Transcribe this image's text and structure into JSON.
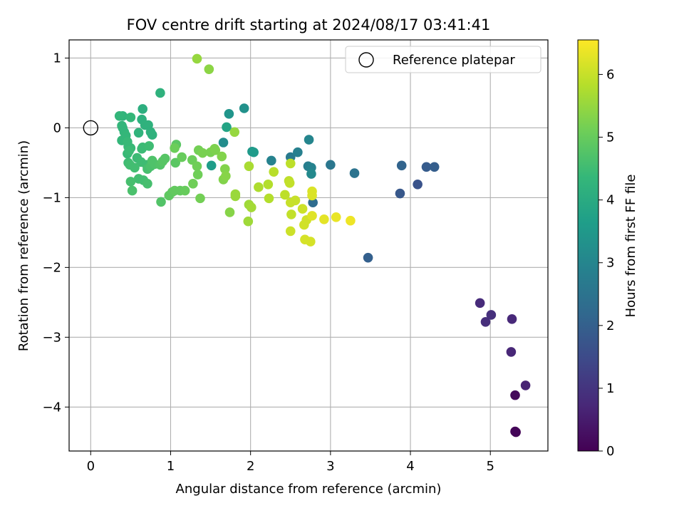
{
  "chart_data": {
    "type": "scatter",
    "title": "FOV centre drift starting at 2024/08/17 03:41:41",
    "xlabel": "Angular distance from reference (arcmin)",
    "ylabel": "Rotation from reference (arcmin)",
    "xlim": [
      -0.27,
      5.72
    ],
    "ylim": [
      -4.63,
      1.26
    ],
    "x_ticks": [
      "0",
      "1",
      "2",
      "3",
      "4",
      "5"
    ],
    "y_ticks": [
      "1",
      "0",
      "−1",
      "−2",
      "−3",
      "−4"
    ],
    "x_tick_values": [
      0,
      1,
      2,
      3,
      4,
      5
    ],
    "y_tick_values": [
      1,
      0,
      -1,
      -2,
      -3,
      -4
    ],
    "grid": true,
    "legend": {
      "position": "top-right",
      "entries": [
        "Reference platepar"
      ]
    },
    "reference_point": {
      "x": 0,
      "y": 0
    },
    "colorbar": {
      "label": "Hours from first FF file",
      "range": [
        0,
        6.55
      ],
      "ticks": [
        "0",
        "1",
        "2",
        "3",
        "4",
        "5",
        "6"
      ],
      "tick_values": [
        0,
        1,
        2,
        3,
        4,
        5,
        6
      ],
      "colormap": "viridis"
    },
    "points": [
      [
        5.32,
        -4.36,
        0.05
      ],
      [
        5.31,
        -4.35,
        0.08
      ],
      [
        5.31,
        -3.83,
        0.15
      ],
      [
        5.44,
        -3.69,
        0.65
      ],
      [
        5.26,
        -3.21,
        0.7
      ],
      [
        5.27,
        -2.74,
        0.75
      ],
      [
        4.87,
        -2.51,
        0.8
      ],
      [
        4.94,
        -2.78,
        0.85
      ],
      [
        5.01,
        -2.68,
        0.9
      ],
      [
        4.09,
        -0.81,
        1.7
      ],
      [
        3.87,
        -0.94,
        1.8
      ],
      [
        4.2,
        -0.56,
        1.9
      ],
      [
        4.3,
        -0.56,
        1.95
      ],
      [
        3.47,
        -1.86,
        2.0
      ],
      [
        3.89,
        -0.54,
        2.1
      ],
      [
        2.78,
        -1.07,
        2.3
      ],
      [
        3.3,
        -0.65,
        2.5
      ],
      [
        3.0,
        -0.53,
        2.6
      ],
      [
        2.72,
        -0.55,
        2.8
      ],
      [
        2.76,
        -0.57,
        2.9
      ],
      [
        2.5,
        -0.42,
        2.7
      ],
      [
        2.59,
        -0.35,
        2.85
      ],
      [
        2.26,
        -0.47,
        2.9
      ],
      [
        2.73,
        -0.17,
        3.0
      ],
      [
        2.76,
        -0.66,
        3.1
      ],
      [
        1.66,
        -0.21,
        3.2
      ],
      [
        1.92,
        0.28,
        3.3
      ],
      [
        1.73,
        0.2,
        3.4
      ],
      [
        2.02,
        -0.34,
        3.5
      ],
      [
        2.04,
        -0.35,
        3.55
      ],
      [
        1.51,
        -0.54,
        3.6
      ],
      [
        1.7,
        0.01,
        3.8
      ],
      [
        0.65,
        0.27,
        4.1
      ],
      [
        0.64,
        0.12,
        4.15
      ],
      [
        0.68,
        0.04,
        4.2
      ],
      [
        0.72,
        0.04,
        4.2
      ],
      [
        0.75,
        -0.06,
        4.2
      ],
      [
        0.77,
        -0.1,
        4.2
      ],
      [
        0.87,
        0.5,
        4.2
      ],
      [
        0.6,
        -0.07,
        4.25
      ],
      [
        0.4,
        0.17,
        4.25
      ],
      [
        0.36,
        0.17,
        4.3
      ],
      [
        0.39,
        0.03,
        4.3
      ],
      [
        0.4,
        0.0,
        4.3
      ],
      [
        0.42,
        -0.06,
        4.3
      ],
      [
        0.44,
        -0.11,
        4.35
      ],
      [
        0.5,
        0.15,
        4.35
      ],
      [
        0.39,
        -0.18,
        4.35
      ],
      [
        0.46,
        -0.2,
        4.4
      ],
      [
        0.47,
        -0.27,
        4.4
      ],
      [
        0.5,
        -0.29,
        4.4
      ],
      [
        0.46,
        -0.37,
        4.4
      ],
      [
        0.48,
        -0.33,
        4.45
      ],
      [
        0.58,
        -0.43,
        4.45
      ],
      [
        0.65,
        -0.28,
        4.45
      ],
      [
        0.64,
        -0.3,
        4.45
      ],
      [
        0.73,
        -0.26,
        4.5
      ],
      [
        0.63,
        -0.49,
        4.5
      ],
      [
        0.7,
        -0.53,
        4.5
      ],
      [
        0.47,
        -0.5,
        4.5
      ],
      [
        0.49,
        -0.53,
        4.55
      ],
      [
        0.55,
        -0.57,
        4.55
      ],
      [
        0.6,
        -0.73,
        4.55
      ],
      [
        0.66,
        -0.75,
        4.55
      ],
      [
        0.71,
        -0.59,
        4.6
      ],
      [
        0.71,
        -0.8,
        4.6
      ],
      [
        0.5,
        -0.77,
        4.6
      ],
      [
        0.52,
        -0.9,
        4.65
      ],
      [
        0.75,
        -0.55,
        4.65
      ],
      [
        0.77,
        -0.47,
        4.7
      ],
      [
        0.8,
        -0.52,
        4.7
      ],
      [
        0.87,
        -0.53,
        4.75
      ],
      [
        0.88,
        -1.06,
        4.75
      ],
      [
        0.9,
        -0.48,
        4.8
      ],
      [
        0.93,
        -0.44,
        4.8
      ],
      [
        1.07,
        -0.24,
        4.85
      ],
      [
        1.06,
        -0.5,
        4.85
      ],
      [
        0.98,
        -0.97,
        4.9
      ],
      [
        1.02,
        -0.92,
        4.9
      ],
      [
        1.05,
        -0.9,
        4.95
      ],
      [
        1.12,
        -0.9,
        4.95
      ],
      [
        1.18,
        -0.9,
        5.0
      ],
      [
        1.14,
        -0.42,
        5.0
      ],
      [
        1.05,
        -0.29,
        5.05
      ],
      [
        1.27,
        -0.46,
        5.05
      ],
      [
        1.28,
        -0.8,
        5.1
      ],
      [
        1.33,
        -0.55,
        5.1
      ],
      [
        1.34,
        -0.67,
        5.1
      ],
      [
        1.37,
        -1.01,
        5.15
      ],
      [
        1.35,
        -0.32,
        5.15
      ],
      [
        1.4,
        -0.36,
        5.2
      ],
      [
        1.5,
        -0.35,
        5.2
      ],
      [
        1.55,
        -0.3,
        5.25
      ],
      [
        1.56,
        -0.32,
        5.25
      ],
      [
        1.64,
        -0.41,
        5.3
      ],
      [
        1.68,
        -0.59,
        5.3
      ],
      [
        1.66,
        -0.74,
        5.3
      ],
      [
        1.69,
        -0.69,
        5.35
      ],
      [
        1.74,
        -1.21,
        5.35
      ],
      [
        1.48,
        0.84,
        5.4
      ],
      [
        1.33,
        0.99,
        5.5
      ],
      [
        1.8,
        -0.06,
        5.5
      ],
      [
        1.81,
        -0.95,
        5.55
      ],
      [
        1.81,
        -0.98,
        5.55
      ],
      [
        1.97,
        -1.34,
        5.6
      ],
      [
        1.98,
        -1.1,
        5.6
      ],
      [
        2.01,
        -1.14,
        5.65
      ],
      [
        1.98,
        -0.55,
        5.7
      ],
      [
        2.1,
        -0.85,
        5.75
      ],
      [
        2.22,
        -0.81,
        5.8
      ],
      [
        2.23,
        -1.01,
        5.8
      ],
      [
        2.29,
        -0.63,
        5.85
      ],
      [
        2.43,
        -0.96,
        5.9
      ],
      [
        2.5,
        -0.51,
        5.9
      ],
      [
        2.48,
        -0.76,
        5.9
      ],
      [
        2.49,
        -0.79,
        5.95
      ],
      [
        2.51,
        -1.24,
        5.95
      ],
      [
        2.5,
        -1.07,
        6.0
      ],
      [
        2.56,
        -1.04,
        6.0
      ],
      [
        2.5,
        -1.48,
        6.05
      ],
      [
        2.65,
        -1.16,
        6.05
      ],
      [
        2.67,
        -1.39,
        6.1
      ],
      [
        2.7,
        -1.32,
        6.1
      ],
      [
        2.68,
        -1.6,
        6.15
      ],
      [
        2.75,
        -1.63,
        6.15
      ],
      [
        2.77,
        -0.97,
        6.2
      ],
      [
        2.77,
        -0.91,
        6.2
      ],
      [
        2.77,
        -1.26,
        6.25
      ],
      [
        2.92,
        -1.31,
        6.3
      ],
      [
        3.07,
        -1.28,
        6.35
      ],
      [
        3.25,
        -1.33,
        6.4
      ]
    ]
  }
}
